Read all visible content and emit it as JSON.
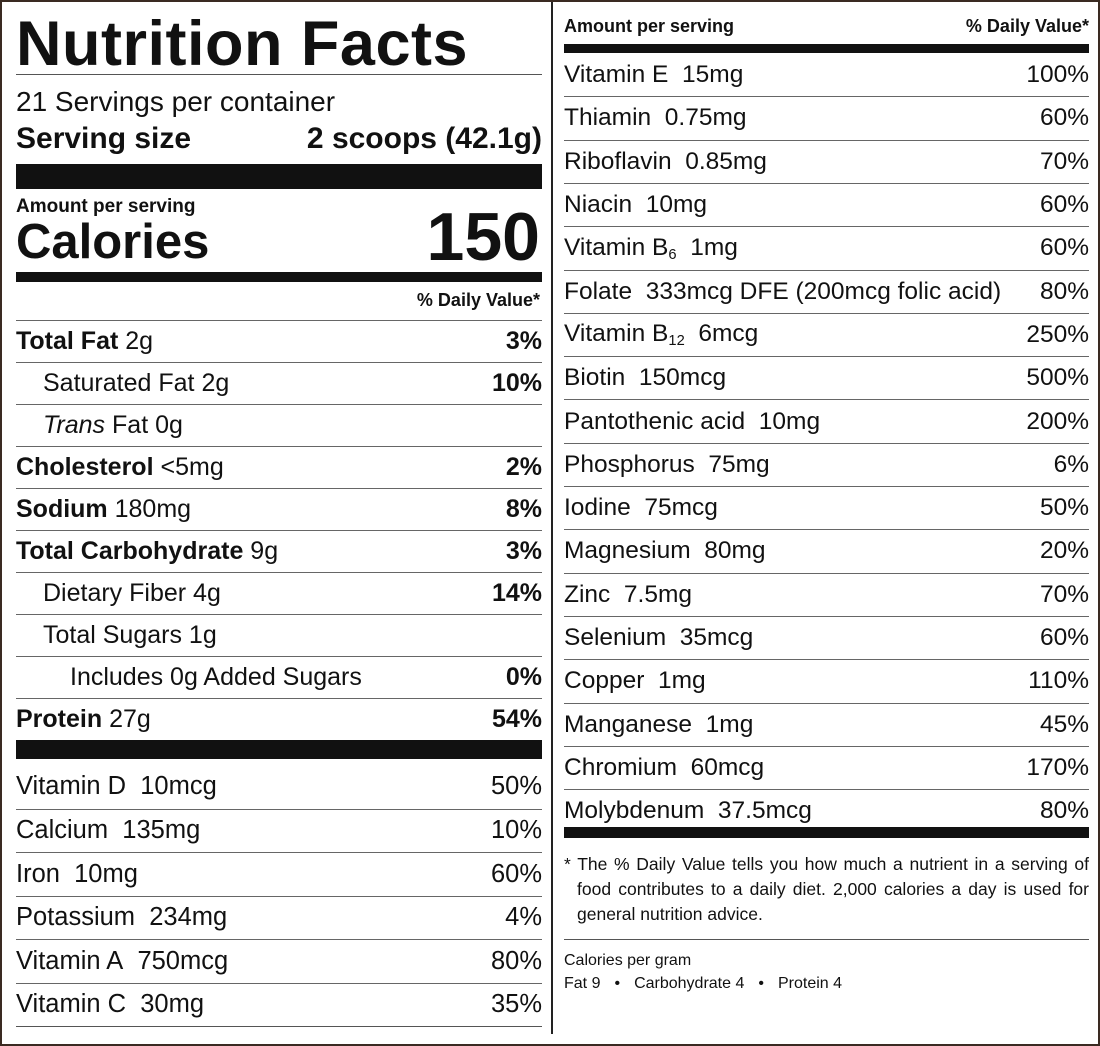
{
  "title": "Nutrition Facts",
  "servings": "21 Servings per container",
  "serving_size": {
    "label": "Serving size",
    "value": "2 scoops (42.1g)"
  },
  "calories": {
    "amount_label": "Amount per serving",
    "label": "Calories",
    "value": "150"
  },
  "daily_value_header": "% Daily Value*",
  "nutrients": [
    {
      "name": "Total Fat",
      "amount": "2g",
      "dv": "3%"
    },
    {
      "name": "Saturated Fat",
      "amount": "2g",
      "dv": "10%"
    },
    {
      "prefix": "Trans",
      "name": "Fat",
      "amount": "0g"
    },
    {
      "name": "Cholesterol",
      "amount": "<5mg",
      "dv": "2%"
    },
    {
      "name": "Sodium",
      "amount": "180mg",
      "dv": "8%"
    },
    {
      "name": "Total Carbohydrate",
      "amount": "9g",
      "dv": "3%"
    },
    {
      "name": "Dietary Fiber",
      "amount": "4g",
      "dv": "14%"
    },
    {
      "name": "Total Sugars",
      "amount": "1g"
    },
    {
      "name": "Includes 0g Added Sugars",
      "dv": "0%"
    },
    {
      "name": "Protein",
      "amount": "27g",
      "dv": "54%"
    }
  ],
  "vitamins": [
    {
      "name": "Vitamin D",
      "amount": "10mcg",
      "dv": "50%"
    },
    {
      "name": "Calcium",
      "amount": "135mg",
      "dv": "10%"
    },
    {
      "name": "Iron",
      "amount": "10mg",
      "dv": "60%"
    },
    {
      "name": "Potassium",
      "amount": "234mg",
      "dv": "4%"
    },
    {
      "name": "Vitamin A",
      "amount": "750mcg",
      "dv": "80%"
    },
    {
      "name": "Vitamin C",
      "amount": "30mg",
      "dv": "35%"
    }
  ],
  "supplement": {
    "header": {
      "amount": "Amount per serving",
      "dv": "% Daily Value*"
    },
    "rows": [
      {
        "name": "Vitamin E",
        "amount": "15mg",
        "dv": "100%"
      },
      {
        "name": "Thiamin",
        "amount": "0.75mg",
        "dv": "60%"
      },
      {
        "name": "Riboflavin",
        "amount": "0.85mg",
        "dv": "70%"
      },
      {
        "name": "Niacin",
        "amount": "10mg",
        "dv": "60%"
      },
      {
        "name": "Vitamin B",
        "sub": "6",
        "amount": "1mg",
        "dv": "60%"
      },
      {
        "name": "Folate",
        "amount": "333mcg DFE (200mcg folic acid)",
        "dv": "80%"
      },
      {
        "name": "Vitamin B",
        "sub": "12",
        "amount": "6mcg",
        "dv": "250%"
      },
      {
        "name": "Biotin",
        "amount": "150mcg",
        "dv": "500%"
      },
      {
        "name": "Pantothenic acid",
        "amount": "10mg",
        "dv": "200%"
      },
      {
        "name": "Phosphorus",
        "amount": "75mg",
        "dv": "6%"
      },
      {
        "name": "Iodine",
        "amount": "75mcg",
        "dv": "50%"
      },
      {
        "name": "Magnesium",
        "amount": "80mg",
        "dv": "20%"
      },
      {
        "name": "Zinc",
        "amount": "7.5mg",
        "dv": "70%"
      },
      {
        "name": "Selenium",
        "amount": "35mcg",
        "dv": "60%"
      },
      {
        "name": "Copper",
        "amount": "1mg",
        "dv": "110%"
      },
      {
        "name": "Manganese",
        "amount": "1mg",
        "dv": "45%"
      },
      {
        "name": "Chromium",
        "amount": "60mcg",
        "dv": "170%"
      },
      {
        "name": "Molybdenum",
        "amount": "37.5mcg",
        "dv": "80%"
      }
    ]
  },
  "footnote": "* The % Daily Value tells you how much a nutrient in a serving of food contributes to a daily diet. 2,000 calories a day is used for general nutrition advice.",
  "calories_per_gram": {
    "label": "Calories per gram",
    "items": [
      "Fat 9",
      "Carbohydrate 4",
      "Protein 4"
    ]
  }
}
